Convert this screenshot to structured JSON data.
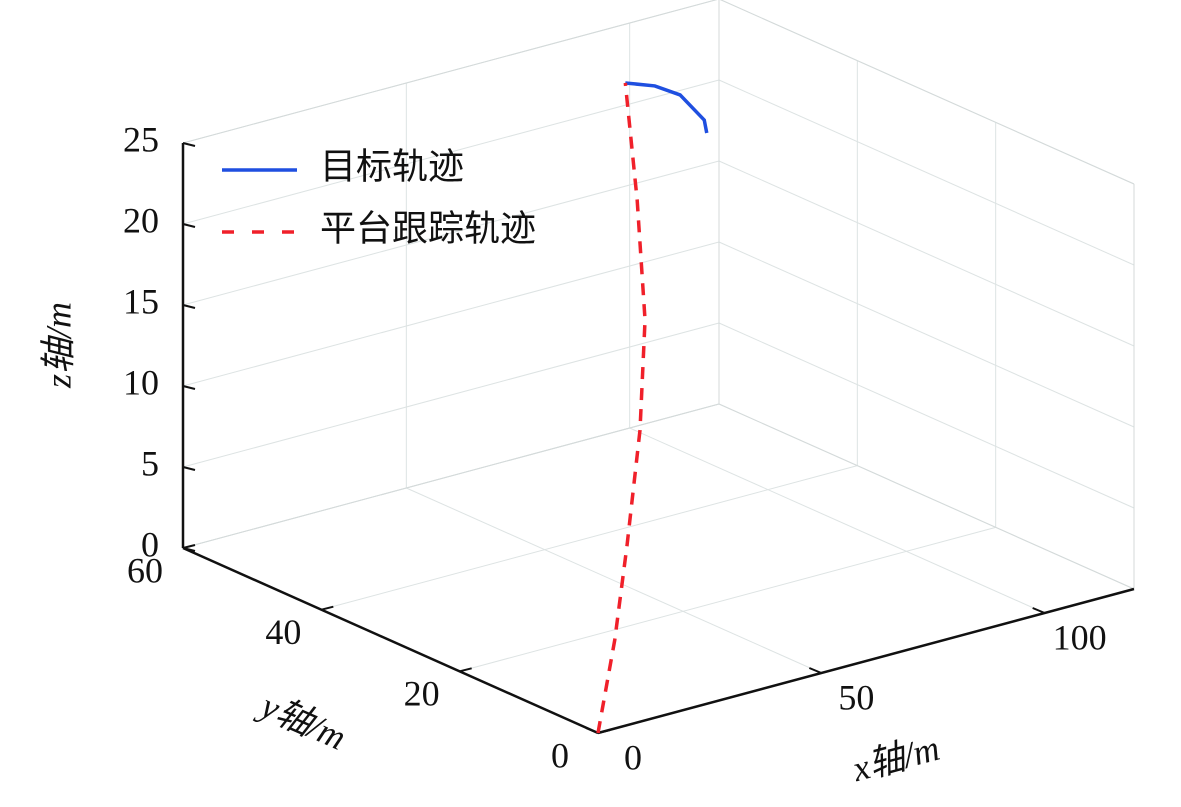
{
  "chart_data": {
    "type": "line3d",
    "xlabel": "x轴/m",
    "ylabel": "y轴/m",
    "zlabel": "z轴/m",
    "xlim": [
      0,
      120
    ],
    "ylim": [
      0,
      60
    ],
    "zlim": [
      0,
      25
    ],
    "xticks": [
      0,
      50,
      100
    ],
    "yticks": [
      0,
      20,
      40,
      60
    ],
    "zticks": [
      0,
      5,
      10,
      15,
      20,
      25
    ],
    "grid": true,
    "legend": "upper left",
    "series": [
      {
        "name": "目标轨迹",
        "color": "#1f4fe0",
        "line_style": "solid",
        "x": [
          80.6,
          83.8,
          84.5,
          80.0,
          76.3
        ],
        "y": [
          48.1,
          45.9,
          42.7,
          36.3,
          33.55
        ],
        "z": [
          25,
          25,
          25,
          25,
          25
        ]
      },
      {
        "name": "平台跟踪轨迹",
        "color": "#f0202a",
        "line_style": "dashed",
        "x": [
          0,
          16.3,
          22.3,
          34.8,
          44.6,
          60.8,
          80.6
        ],
        "y": [
          0,
          8.1,
          10.2,
          16.4,
          22.0,
          33.6,
          48.1
        ],
        "z": [
          0,
          3,
          8,
          13,
          18,
          22,
          25
        ]
      }
    ]
  }
}
